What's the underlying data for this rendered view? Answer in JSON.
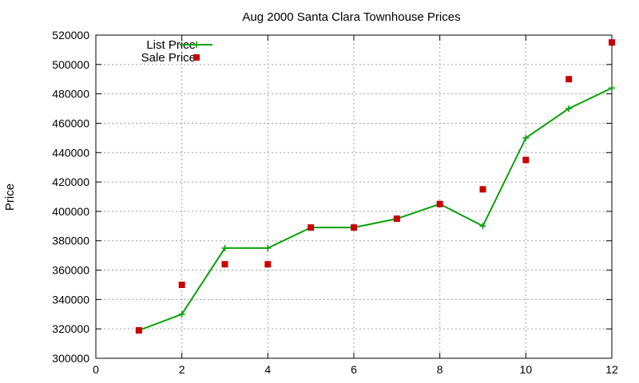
{
  "chart_data": {
    "type": "line",
    "title": "Aug 2000 Santa Clara Townhouse Prices",
    "xlabel": "",
    "ylabel": "Price",
    "xlim": [
      0,
      12
    ],
    "ylim": [
      300000,
      520000
    ],
    "x_ticks": [
      "0",
      "2",
      "4",
      "6",
      "8",
      "10",
      "12"
    ],
    "y_ticks": [
      "300000",
      "320000",
      "340000",
      "360000",
      "380000",
      "400000",
      "420000",
      "440000",
      "460000",
      "480000",
      "500000",
      "520000"
    ],
    "grid": true,
    "legend_position": "top-left",
    "series": [
      {
        "name": "List Price",
        "style": "line+cross",
        "color": "#0aa00a",
        "x": [
          1,
          2,
          3,
          4,
          5,
          6,
          7,
          8,
          9,
          10,
          11,
          12
        ],
        "y": [
          319000,
          330000,
          375000,
          375000,
          389000,
          389000,
          395000,
          405000,
          390000,
          450000,
          470000,
          484000
        ]
      },
      {
        "name": "Sale Price",
        "style": "square",
        "color": "#c80000",
        "x": [
          1,
          2,
          3,
          4,
          5,
          6,
          7,
          8,
          9,
          10,
          11,
          12
        ],
        "y": [
          319000,
          350000,
          364000,
          364000,
          389000,
          389000,
          395000,
          405000,
          415000,
          435000,
          490000,
          515000
        ]
      }
    ]
  }
}
